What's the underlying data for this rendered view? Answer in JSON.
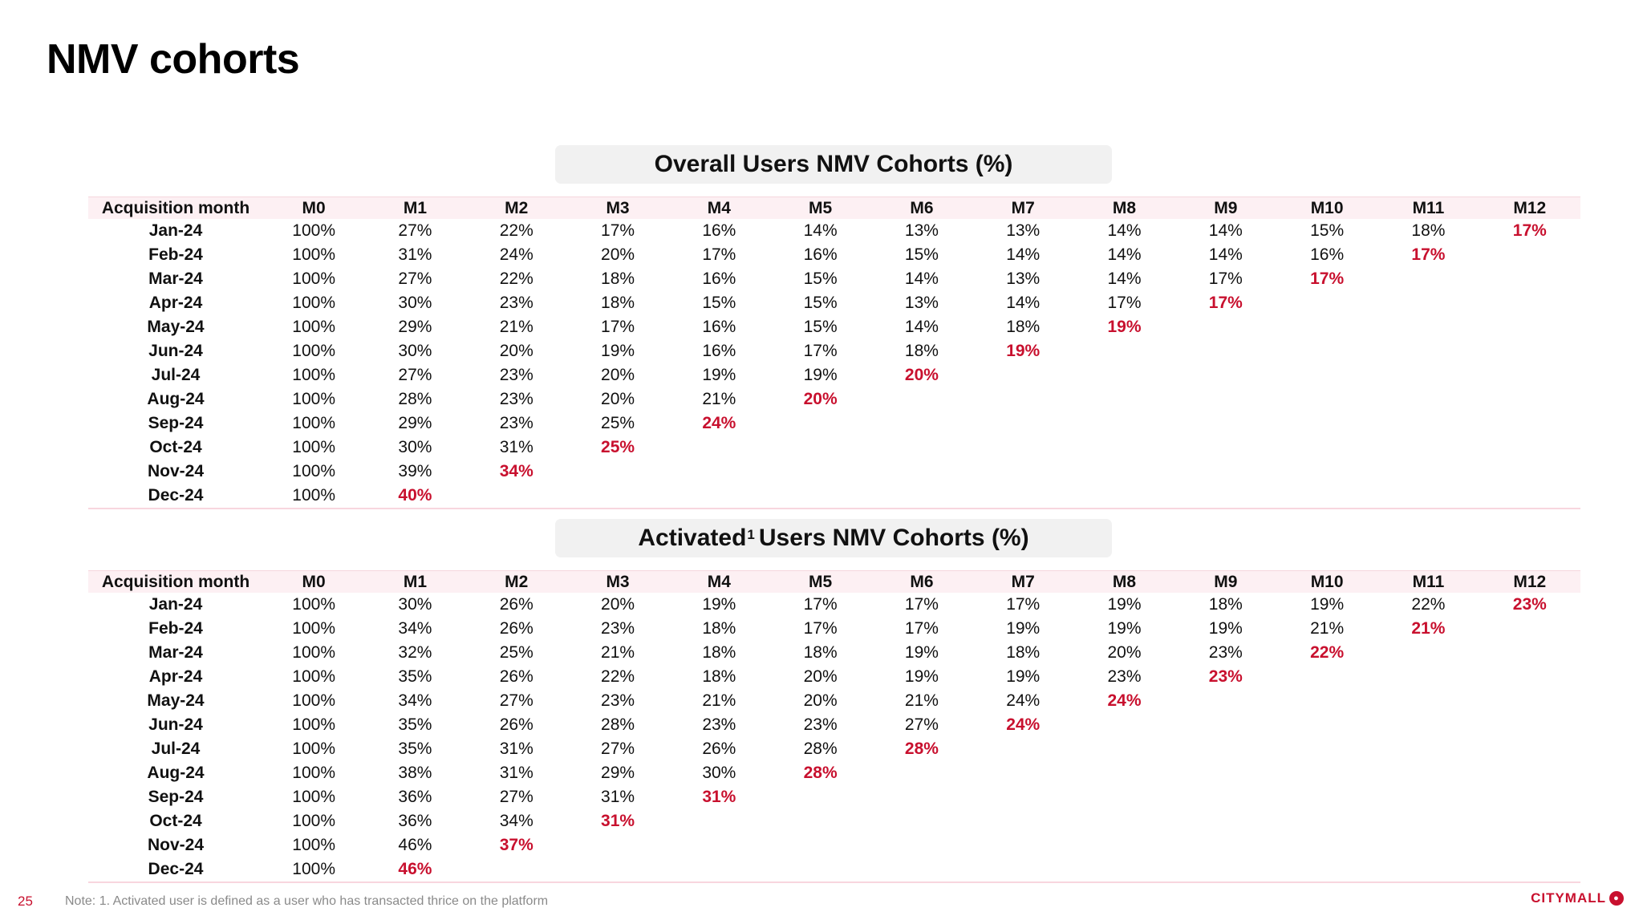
{
  "page": {
    "title": "NMV cohorts",
    "page_number": "25",
    "footnote": "Note: 1. Activated user is defined as a user who has transacted thrice on the platform",
    "brand": "CITYMALL",
    "highlight_color": "#c8102e"
  },
  "columns": [
    "Acquisition  month",
    "M0",
    "M1",
    "M2",
    "M3",
    "M4",
    "M5",
    "M6",
    "M7",
    "M8",
    "M9",
    "M10",
    "M11",
    "M12"
  ],
  "overall": {
    "title": "Overall Users NMV Cohorts (%)",
    "rows": [
      {
        "month": "Jan-24",
        "values": [
          "100%",
          "27%",
          "22%",
          "17%",
          "16%",
          "14%",
          "13%",
          "13%",
          "14%",
          "14%",
          "15%",
          "18%",
          "17%"
        ]
      },
      {
        "month": "Feb-24",
        "values": [
          "100%",
          "31%",
          "24%",
          "20%",
          "17%",
          "16%",
          "15%",
          "14%",
          "14%",
          "14%",
          "16%",
          "17%"
        ]
      },
      {
        "month": "Mar-24",
        "values": [
          "100%",
          "27%",
          "22%",
          "18%",
          "16%",
          "15%",
          "14%",
          "13%",
          "14%",
          "17%",
          "17%"
        ]
      },
      {
        "month": "Apr-24",
        "values": [
          "100%",
          "30%",
          "23%",
          "18%",
          "15%",
          "15%",
          "13%",
          "14%",
          "17%",
          "17%"
        ]
      },
      {
        "month": "May-24",
        "values": [
          "100%",
          "29%",
          "21%",
          "17%",
          "16%",
          "15%",
          "14%",
          "18%",
          "19%"
        ]
      },
      {
        "month": "Jun-24",
        "values": [
          "100%",
          "30%",
          "20%",
          "19%",
          "16%",
          "17%",
          "18%",
          "19%"
        ]
      },
      {
        "month": "Jul-24",
        "values": [
          "100%",
          "27%",
          "23%",
          "20%",
          "19%",
          "19%",
          "20%"
        ]
      },
      {
        "month": "Aug-24",
        "values": [
          "100%",
          "28%",
          "23%",
          "20%",
          "21%",
          "20%"
        ]
      },
      {
        "month": "Sep-24",
        "values": [
          "100%",
          "29%",
          "23%",
          "25%",
          "24%"
        ]
      },
      {
        "month": "Oct-24",
        "values": [
          "100%",
          "30%",
          "31%",
          "25%"
        ]
      },
      {
        "month": "Nov-24",
        "values": [
          "100%",
          "39%",
          "34%"
        ]
      },
      {
        "month": "Dec-24",
        "values": [
          "100%",
          "40%"
        ]
      }
    ]
  },
  "activated": {
    "title_main": "Activated",
    "title_sup": "1",
    "title_rest": "Users NMV Cohorts (%)",
    "rows": [
      {
        "month": "Jan-24",
        "values": [
          "100%",
          "30%",
          "26%",
          "20%",
          "19%",
          "17%",
          "17%",
          "17%",
          "19%",
          "18%",
          "19%",
          "22%",
          "23%"
        ]
      },
      {
        "month": "Feb-24",
        "values": [
          "100%",
          "34%",
          "26%",
          "23%",
          "18%",
          "17%",
          "17%",
          "19%",
          "19%",
          "19%",
          "21%",
          "21%"
        ]
      },
      {
        "month": "Mar-24",
        "values": [
          "100%",
          "32%",
          "25%",
          "21%",
          "18%",
          "18%",
          "19%",
          "18%",
          "20%",
          "23%",
          "22%"
        ]
      },
      {
        "month": "Apr-24",
        "values": [
          "100%",
          "35%",
          "26%",
          "22%",
          "18%",
          "20%",
          "19%",
          "19%",
          "23%",
          "23%"
        ]
      },
      {
        "month": "May-24",
        "values": [
          "100%",
          "34%",
          "27%",
          "23%",
          "21%",
          "20%",
          "21%",
          "24%",
          "24%"
        ]
      },
      {
        "month": "Jun-24",
        "values": [
          "100%",
          "35%",
          "26%",
          "28%",
          "23%",
          "23%",
          "27%",
          "24%"
        ]
      },
      {
        "month": "Jul-24",
        "values": [
          "100%",
          "35%",
          "31%",
          "27%",
          "26%",
          "28%",
          "28%"
        ]
      },
      {
        "month": "Aug-24",
        "values": [
          "100%",
          "38%",
          "31%",
          "29%",
          "30%",
          "28%"
        ]
      },
      {
        "month": "Sep-24",
        "values": [
          "100%",
          "36%",
          "27%",
          "31%",
          "31%"
        ]
      },
      {
        "month": "Oct-24",
        "values": [
          "100%",
          "36%",
          "34%",
          "31%"
        ]
      },
      {
        "month": "Nov-24",
        "values": [
          "100%",
          "46%",
          "37%"
        ]
      },
      {
        "month": "Dec-24",
        "values": [
          "100%",
          "46%"
        ]
      }
    ]
  }
}
